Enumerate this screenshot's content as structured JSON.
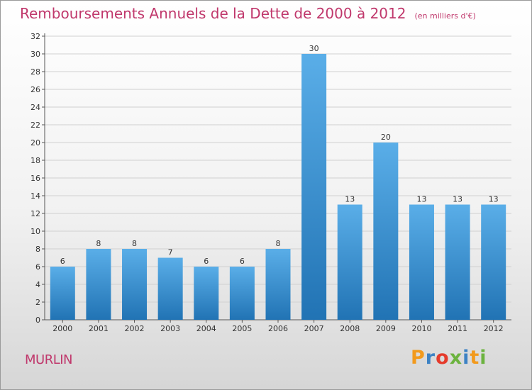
{
  "header": {
    "title": "Remboursements Annuels de la Dette de 2000 à 2012",
    "unit": "(en milliers d'€)"
  },
  "footer": {
    "commune": "MURLIN",
    "brand": "Proxiti",
    "brand_colors": [
      "#f29a1d",
      "#3c82c4",
      "#e53b2c",
      "#6cb33f",
      "#3c82c4",
      "#f29a1d",
      "#6cb33f"
    ]
  },
  "colors": {
    "title": "#c0386c",
    "bar_light": "#5aaee8",
    "bar_dark": "#2173b4",
    "grid": "#d0d0d0"
  },
  "chart_data": {
    "type": "bar",
    "title": "Remboursements Annuels de la Dette de 2000 à 2012",
    "categories": [
      "2000",
      "2001",
      "2002",
      "2003",
      "2004",
      "2005",
      "2006",
      "2007",
      "2008",
      "2009",
      "2010",
      "2011",
      "2012"
    ],
    "values": [
      6,
      8,
      8,
      7,
      6,
      6,
      8,
      30,
      13,
      20,
      13,
      13,
      13
    ],
    "xlabel": "",
    "ylabel": "",
    "ylim": [
      0,
      32
    ],
    "yticks": [
      0,
      2,
      4,
      6,
      8,
      10,
      12,
      14,
      16,
      18,
      20,
      22,
      24,
      26,
      28,
      30,
      32
    ],
    "grid": true,
    "legend": "none"
  }
}
